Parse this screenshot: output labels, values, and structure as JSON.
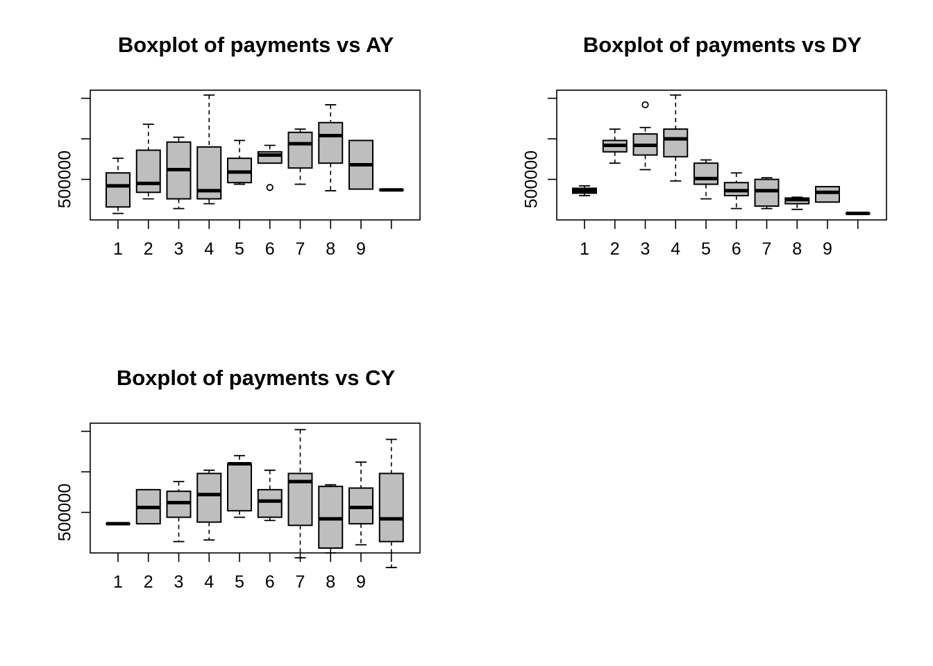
{
  "colors": {
    "box_fill": "#bebebe",
    "stroke": "#000000",
    "background": "#ffffff"
  },
  "chart_data": [
    {
      "type": "boxplot",
      "title": "Boxplot of payments vs AY",
      "xlabel": "",
      "ylabel": "",
      "x_tick_labels": [
        "1",
        "2",
        "3",
        "4",
        "5",
        "6",
        "7",
        "8",
        "9"
      ],
      "y_tick_labels": [
        "500000"
      ],
      "ylim": [
        250000,
        1050000
      ],
      "y_ticks": [
        500000,
        750000,
        1000000
      ],
      "boxes": [
        {
          "category": "1",
          "min": 290000,
          "q1": 330000,
          "median": 460000,
          "q3": 540000,
          "max": 630000,
          "outliers": []
        },
        {
          "category": "2",
          "min": 380000,
          "q1": 420000,
          "median": 475000,
          "q3": 680000,
          "max": 840000,
          "outliers": []
        },
        {
          "category": "3",
          "min": 320000,
          "q1": 380000,
          "median": 560000,
          "q3": 730000,
          "max": 760000,
          "outliers": []
        },
        {
          "category": "4",
          "min": 350000,
          "q1": 380000,
          "median": 430000,
          "q3": 700000,
          "max": 1020000,
          "outliers": []
        },
        {
          "category": "5",
          "min": 470000,
          "q1": 480000,
          "median": 545000,
          "q3": 630000,
          "max": 740000,
          "outliers": []
        },
        {
          "category": "6",
          "min": 600000,
          "q1": 600000,
          "median": 650000,
          "q3": 670000,
          "max": 710000,
          "outliers": [
            450000
          ]
        },
        {
          "category": "7",
          "min": 470000,
          "q1": 570000,
          "median": 720000,
          "q3": 790000,
          "max": 810000,
          "outliers": []
        },
        {
          "category": "8",
          "min": 430000,
          "q1": 600000,
          "median": 770000,
          "q3": 850000,
          "max": 960000,
          "outliers": []
        },
        {
          "category": "9",
          "min": 440000,
          "q1": 440000,
          "median": 590000,
          "q3": 740000,
          "max": 740000,
          "outliers": []
        },
        {
          "category": "",
          "min": 435000,
          "q1": 435000,
          "median": 435000,
          "q3": 435000,
          "max": 435000,
          "outliers": []
        }
      ]
    },
    {
      "type": "boxplot",
      "title": "Boxplot of payments vs DY",
      "xlabel": "",
      "ylabel": "",
      "x_tick_labels": [
        "1",
        "2",
        "3",
        "4",
        "5",
        "6",
        "7",
        "8",
        "9"
      ],
      "y_tick_labels": [
        "500000"
      ],
      "ylim": [
        250000,
        1050000
      ],
      "y_ticks": [
        500000,
        750000,
        1000000
      ],
      "boxes": [
        {
          "category": "1",
          "min": 400000,
          "q1": 415000,
          "median": 430000,
          "q3": 445000,
          "max": 460000,
          "outliers": []
        },
        {
          "category": "2",
          "min": 600000,
          "q1": 670000,
          "median": 710000,
          "q3": 740000,
          "max": 810000,
          "outliers": []
        },
        {
          "category": "3",
          "min": 560000,
          "q1": 650000,
          "median": 710000,
          "q3": 780000,
          "max": 820000,
          "outliers": [
            960000
          ]
        },
        {
          "category": "4",
          "min": 490000,
          "q1": 640000,
          "median": 750000,
          "q3": 810000,
          "max": 1020000,
          "outliers": []
        },
        {
          "category": "5",
          "min": 380000,
          "q1": 470000,
          "median": 505000,
          "q3": 600000,
          "max": 620000,
          "outliers": []
        },
        {
          "category": "6",
          "min": 320000,
          "q1": 400000,
          "median": 430000,
          "q3": 480000,
          "max": 540000,
          "outliers": []
        },
        {
          "category": "7",
          "min": 320000,
          "q1": 335000,
          "median": 430000,
          "q3": 500000,
          "max": 510000,
          "outliers": []
        },
        {
          "category": "8",
          "min": 315000,
          "q1": 350000,
          "median": 375000,
          "q3": 385000,
          "max": 390000,
          "outliers": []
        },
        {
          "category": "9",
          "min": 360000,
          "q1": 360000,
          "median": 420000,
          "q3": 455000,
          "max": 455000,
          "outliers": []
        },
        {
          "category": "",
          "min": 290000,
          "q1": 290000,
          "median": 290000,
          "q3": 290000,
          "max": 290000,
          "outliers": []
        }
      ]
    },
    {
      "type": "boxplot",
      "title": "Boxplot of payments vs CY",
      "xlabel": "",
      "ylabel": "",
      "x_tick_labels": [
        "1",
        "2",
        "3",
        "4",
        "5",
        "6",
        "7",
        "8",
        "9"
      ],
      "y_tick_labels": [
        "500000"
      ],
      "ylim": [
        250000,
        1050000
      ],
      "y_ticks": [
        500000,
        750000,
        1000000
      ],
      "boxes": [
        {
          "category": "1",
          "min": 430000,
          "q1": 430000,
          "median": 430000,
          "q3": 430000,
          "max": 430000,
          "outliers": []
        },
        {
          "category": "2",
          "min": 430000,
          "q1": 430000,
          "median": 530000,
          "q3": 640000,
          "max": 640000,
          "outliers": []
        },
        {
          "category": "3",
          "min": 320000,
          "q1": 470000,
          "median": 560000,
          "q3": 630000,
          "max": 690000,
          "outliers": []
        },
        {
          "category": "4",
          "min": 330000,
          "q1": 440000,
          "median": 610000,
          "q3": 740000,
          "max": 760000,
          "outliers": []
        },
        {
          "category": "5",
          "min": 470000,
          "q1": 510000,
          "median": 800000,
          "q3": 800000,
          "max": 850000,
          "outliers": []
        },
        {
          "category": "6",
          "min": 450000,
          "q1": 470000,
          "median": 570000,
          "q3": 640000,
          "max": 760000,
          "outliers": []
        },
        {
          "category": "7",
          "min": 220000,
          "q1": 420000,
          "median": 690000,
          "q3": 740000,
          "max": 1010000,
          "outliers": []
        },
        {
          "category": "8",
          "min": 250000,
          "q1": 280000,
          "median": 460000,
          "q3": 660000,
          "max": 670000,
          "outliers": []
        },
        {
          "category": "9",
          "min": 300000,
          "q1": 430000,
          "median": 530000,
          "q3": 650000,
          "max": 810000,
          "outliers": []
        },
        {
          "category": "",
          "min": 160000,
          "q1": 320000,
          "median": 460000,
          "q3": 740000,
          "max": 950000,
          "outliers": []
        }
      ]
    }
  ]
}
